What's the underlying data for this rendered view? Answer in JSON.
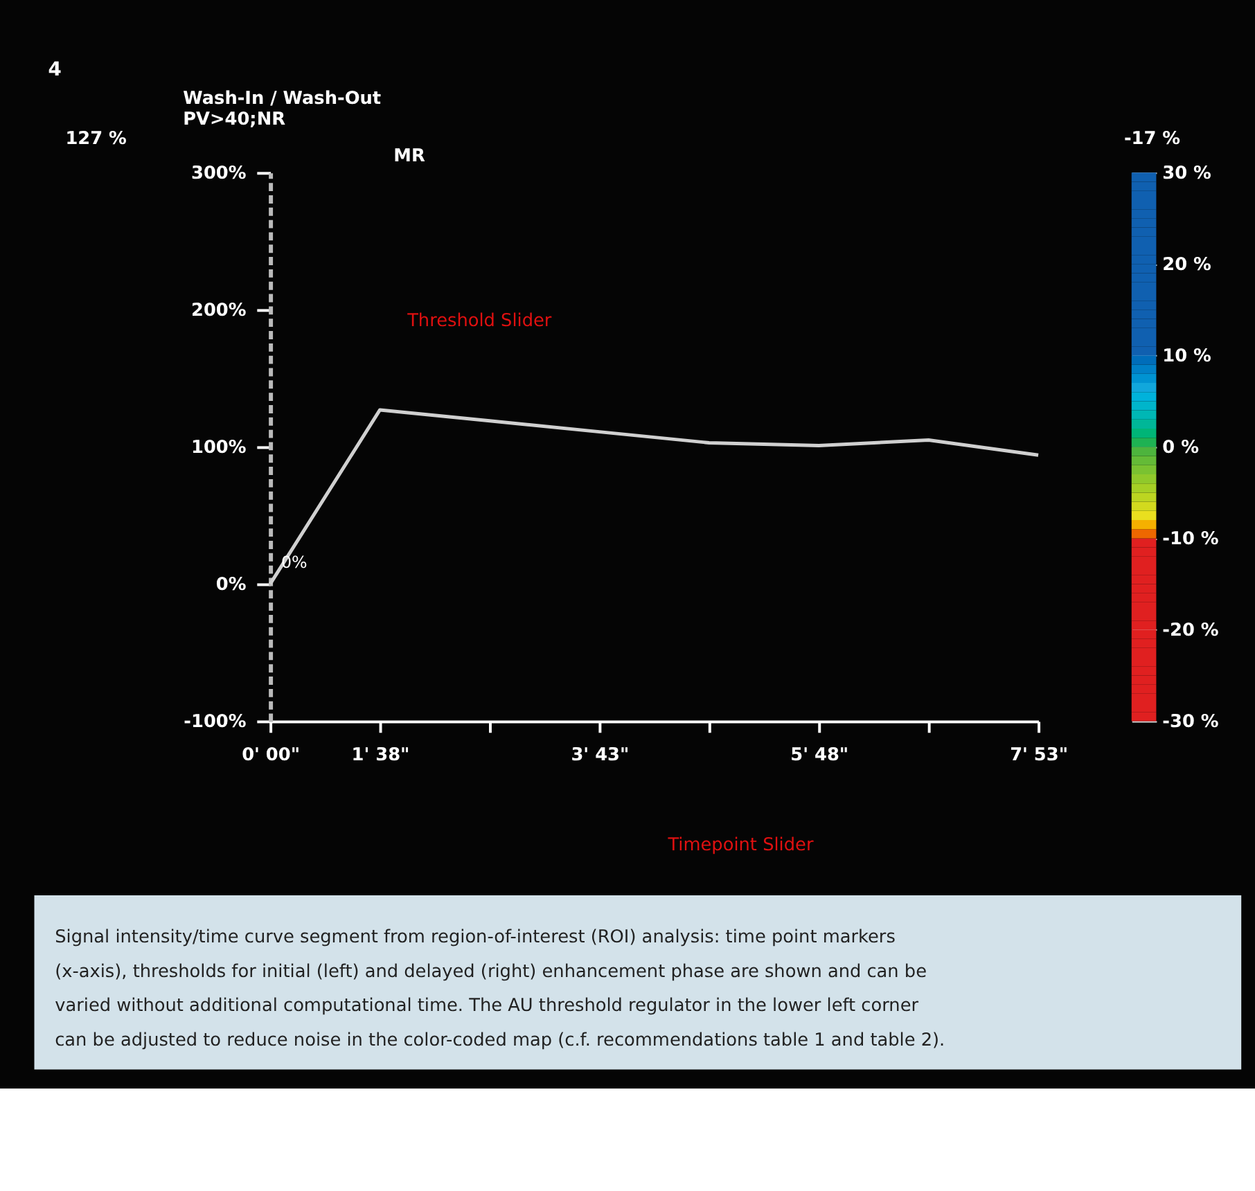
{
  "chart_data": {
    "type": "line",
    "title": "Wash-In / Wash-Out",
    "subtitle": "PV>40;NR",
    "categories": [
      "0' 00\"",
      "1' 38\"",
      null,
      "3' 43\"",
      null,
      "5' 48\"",
      null,
      "7' 53\""
    ],
    "series": [
      {
        "color": "#d0d0d0",
        "values": [
          0,
          127,
          119,
          111,
          103,
          101,
          105,
          94
        ],
        "value_labels": [
          "0%",
          null,
          null,
          null,
          null,
          null,
          null,
          null
        ]
      }
    ],
    "ylim": [
      -100,
      300
    ],
    "yticks": [
      {
        "value": -100,
        "label": "-100%"
      },
      {
        "value": 0,
        "label": "0%"
      },
      {
        "value": 100,
        "label": "100%"
      },
      {
        "value": 200,
        "label": "200%"
      },
      {
        "value": 300,
        "label": "300%"
      }
    ],
    "clim": [
      -30,
      30
    ],
    "cticks": [
      {
        "value": -30,
        "label": "-30 %"
      },
      {
        "value": -20,
        "label": "-20 %"
      },
      {
        "value": -10,
        "label": "-10 %"
      },
      {
        "value": 0,
        "label": "0 %"
      },
      {
        "value": 10,
        "label": "10 %"
      },
      {
        "value": 20,
        "label": "20 %"
      },
      {
        "value": 30,
        "label": "30 %"
      }
    ],
    "grid": false,
    "marker": "none",
    "line_style": "solid",
    "annotations": [
      "4",
      "127 %",
      "-17 %",
      "Threshold Slider",
      "Timepoint Slider",
      "MR",
      "Signal intensity/time curve segment from region-of-interest (ROI) analysis: time point markers (x-axis), thresholds for initial (left) and delayed (right) enhancement phase are shown and can be varied without additional computational time. The AU threshold regulator in the lower left corner can be adjusted to reduce noise in the color-coded map (c.f. recommendations table 1 and table 2)."
    ]
  }
}
